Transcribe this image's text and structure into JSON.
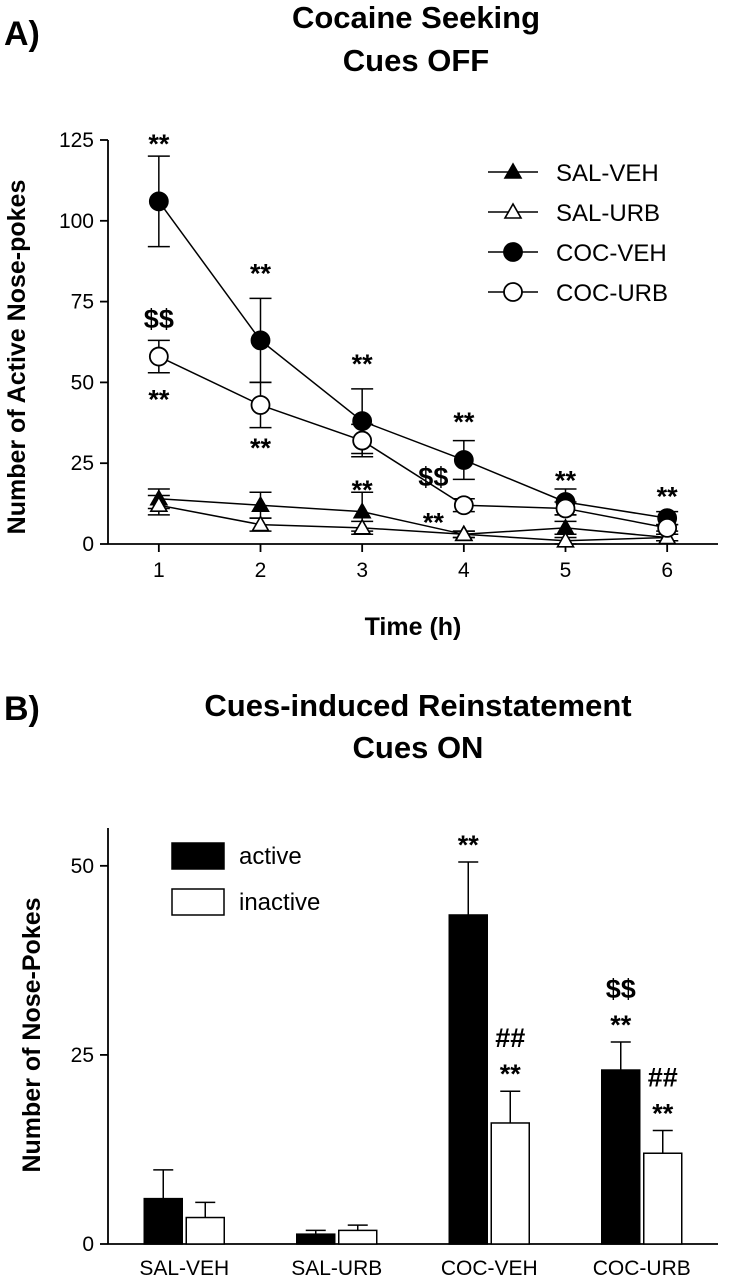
{
  "chart_data": [
    {
      "panel": "A)",
      "type": "line",
      "title": [
        "Cocaine Seeking",
        "Cues OFF"
      ],
      "xlabel": "Time (h)",
      "ylabel": "Number of Active Nose-pokes",
      "x": [
        1,
        2,
        3,
        4,
        5,
        6
      ],
      "xticks": [
        "1",
        "2",
        "3",
        "4",
        "5",
        "6"
      ],
      "ylim": [
        0,
        125
      ],
      "yticks": [
        "0",
        "25",
        "50",
        "75",
        "100",
        "125"
      ],
      "legend_position": "top-right",
      "series": [
        {
          "name": "SAL-VEH",
          "marker": "triangle-filled",
          "values": [
            14,
            12,
            10,
            3,
            5,
            2
          ],
          "errors": [
            3,
            4,
            6,
            1,
            2,
            1
          ]
        },
        {
          "name": "SAL-URB",
          "marker": "triangle-open",
          "values": [
            12,
            6,
            5,
            3,
            1,
            2
          ],
          "errors": [
            3,
            2,
            2,
            1,
            1,
            1
          ]
        },
        {
          "name": "COC-VEH",
          "marker": "circle-filled",
          "values": [
            106,
            63,
            38,
            26,
            13,
            8
          ],
          "errors": [
            14,
            13,
            10,
            6,
            4,
            2
          ]
        },
        {
          "name": "COC-URB",
          "marker": "circle-open",
          "values": [
            58,
            43,
            32,
            12,
            11,
            5
          ],
          "errors": [
            5,
            7,
            5,
            2,
            2,
            1
          ]
        }
      ],
      "annotations": [
        {
          "x": 1,
          "y": 124,
          "text": "**"
        },
        {
          "x": 1,
          "y": 70,
          "text": "$$"
        },
        {
          "x": 1,
          "y": 45,
          "text": "**"
        },
        {
          "x": 2,
          "y": 84,
          "text": "**"
        },
        {
          "x": 2,
          "y": 30,
          "text": "**"
        },
        {
          "x": 3,
          "y": 56,
          "text": "**"
        },
        {
          "x": 3,
          "y": 17,
          "text": "**"
        },
        {
          "x": 4,
          "y": 38,
          "text": "**"
        },
        {
          "x": 3.7,
          "y": 21,
          "text": "$$"
        },
        {
          "x": 3.7,
          "y": 7,
          "text": "**"
        },
        {
          "x": 5,
          "y": 20,
          "text": "**"
        },
        {
          "x": 6,
          "y": 15,
          "text": "**"
        }
      ]
    },
    {
      "panel": "B)",
      "type": "bar",
      "title": [
        "Cues-induced Reinstatement",
        "Cues ON"
      ],
      "ylabel": "Number of Nose-Pokes",
      "categories": [
        "SAL-VEH",
        "SAL-URB",
        "COC-VEH",
        "COC-URB"
      ],
      "ylim": [
        0,
        55
      ],
      "yticks": [
        "0",
        "25",
        "50"
      ],
      "legend_position": "top-left",
      "series": [
        {
          "name": "active",
          "color": "#000000",
          "values": [
            6,
            1.3,
            43.5,
            23
          ],
          "errors": [
            3.8,
            0.5,
            7,
            3.7
          ]
        },
        {
          "name": "inactive",
          "color": "#ffffff",
          "values": [
            3.5,
            1.8,
            16,
            12
          ],
          "errors": [
            2,
            0.7,
            4.2,
            3
          ]
        }
      ],
      "annotations": [
        {
          "category": 2,
          "series": 0,
          "lines": [
            "**"
          ]
        },
        {
          "category": 2,
          "series": 1,
          "lines": [
            "##",
            "**"
          ]
        },
        {
          "category": 3,
          "series": 0,
          "lines": [
            "$$",
            "**"
          ]
        },
        {
          "category": 3,
          "series": 1,
          "lines": [
            "##",
            "**"
          ]
        }
      ]
    }
  ]
}
